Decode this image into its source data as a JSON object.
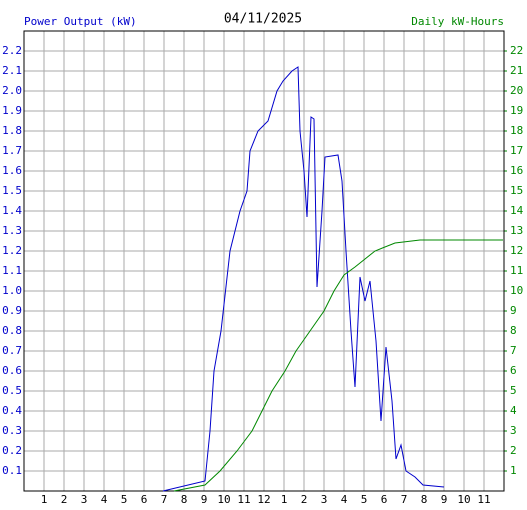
{
  "chart_data": {
    "type": "line",
    "title": "04/11/2025",
    "ylabel": "Power Output (kW)",
    "y2label": "Daily kW-Hours",
    "xlim": [
      0,
      24
    ],
    "xticks": [
      1,
      2,
      3,
      4,
      5,
      6,
      7,
      8,
      9,
      10,
      11,
      12,
      {
        "value": 13,
        "label": "1"
      },
      {
        "value": 14,
        "label": "2"
      },
      {
        "value": 15,
        "label": "3"
      },
      {
        "value": 16,
        "label": "4"
      },
      {
        "value": 17,
        "label": "5"
      },
      {
        "value": 18,
        "label": "6"
      },
      {
        "value": 19,
        "label": "7"
      },
      {
        "value": 20,
        "label": "8"
      },
      {
        "value": 21,
        "label": "9"
      },
      {
        "value": 22,
        "label": "10"
      },
      {
        "value": 23,
        "label": "11"
      }
    ],
    "ylim": [
      0,
      2.3
    ],
    "yticks": [
      0.1,
      0.2,
      0.3,
      0.4,
      0.5,
      0.6,
      0.7,
      0.8,
      0.9,
      {
        "value": 1,
        "label": "1.0"
      },
      1.1,
      1.2,
      1.3,
      1.4,
      1.5,
      1.6,
      1.7,
      1.8,
      1.9,
      {
        "value": 2,
        "label": "2.0"
      },
      2.1,
      2.2
    ],
    "y2lim": [
      0,
      23
    ],
    "y2ticks": [
      1,
      2,
      3,
      4,
      5,
      6,
      7,
      8,
      9,
      10,
      11,
      12,
      13,
      14,
      15,
      16,
      17,
      18,
      19,
      20,
      21,
      22
    ],
    "grid": true,
    "series": [
      {
        "name": "Power Output (kW)",
        "color": "#0000cc",
        "axis": "y",
        "x": [
          6.95,
          9.05,
          9.3,
          9.5,
          9.85,
          10.3,
          10.8,
          11.15,
          11.3,
          11.7,
          12.2,
          12.65,
          12.95,
          13.4,
          13.7,
          13.8,
          14.0,
          14.15,
          14.35,
          14.5,
          14.65,
          14.9,
          15.05,
          15.7,
          15.9,
          16.1,
          16.35,
          16.55,
          16.8,
          17.05,
          17.3,
          17.6,
          17.85,
          18.1,
          18.4,
          18.6,
          18.85,
          19.1,
          19.55,
          19.95,
          21.0
        ],
        "values": [
          0,
          0.05,
          0.3,
          0.6,
          0.8,
          1.2,
          1.4,
          1.5,
          1.7,
          1.8,
          1.85,
          2.0,
          2.05,
          2.1,
          2.12,
          1.8,
          1.6,
          1.37,
          1.87,
          1.86,
          1.02,
          1.4,
          1.67,
          1.68,
          1.55,
          1.2,
          0.8,
          0.52,
          1.07,
          0.95,
          1.05,
          0.75,
          0.35,
          0.72,
          0.45,
          0.16,
          0.23,
          0.1,
          0.07,
          0.03,
          0.02
        ]
      },
      {
        "name": "Daily kW-Hours",
        "color": "#008800",
        "axis": "y2",
        "x": [
          7.5,
          9.05,
          9.8,
          10.65,
          11.4,
          11.9,
          12.4,
          13.05,
          13.6,
          14.3,
          15.0,
          15.5,
          16.0,
          16.55,
          17.55,
          18.55,
          19.8,
          23.95
        ],
        "values": [
          0,
          0.3,
          1,
          2,
          3,
          4,
          5,
          6,
          7,
          8,
          9,
          10,
          10.8,
          11.2,
          12,
          12.4,
          12.55,
          12.55
        ]
      }
    ]
  }
}
